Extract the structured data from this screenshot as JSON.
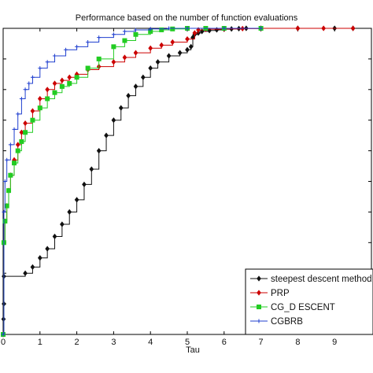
{
  "chart_data": {
    "type": "line",
    "title": "Performance based on the number of function evaluations",
    "xlabel": "Tau",
    "ylabel": "",
    "xlim": [
      0,
      10
    ],
    "ylim": [
      0,
      1
    ],
    "x_ticks": [
      "0",
      "1",
      "2",
      "3",
      "4",
      "5",
      "6",
      "7",
      "8",
      "9"
    ],
    "grid": false,
    "legend_position": "bottom-right",
    "series": [
      {
        "name": "steepest descent method",
        "color": "#111111",
        "marker": "diamond",
        "x": [
          0,
          0.01,
          0.02,
          0.02,
          0.6,
          0.8,
          1.0,
          1.2,
          1.4,
          1.6,
          1.8,
          2.0,
          2.2,
          2.4,
          2.6,
          2.8,
          3.0,
          3.2,
          3.4,
          3.6,
          3.8,
          4.0,
          4.2,
          4.5,
          4.8,
          5.0,
          5.1,
          5.15,
          5.2,
          5.3,
          5.4,
          5.6,
          5.8,
          6.0,
          6.2,
          6.4,
          6.6,
          7.0,
          8.0,
          9.0,
          9.5
        ],
        "y": [
          0,
          0.05,
          0.1,
          0.19,
          0.2,
          0.22,
          0.25,
          0.28,
          0.32,
          0.36,
          0.4,
          0.44,
          0.49,
          0.54,
          0.6,
          0.65,
          0.7,
          0.74,
          0.78,
          0.81,
          0.84,
          0.87,
          0.89,
          0.91,
          0.92,
          0.93,
          0.94,
          0.97,
          0.98,
          0.985,
          0.99,
          0.993,
          0.995,
          0.997,
          0.998,
          0.999,
          1.0,
          1.0,
          1.0,
          1.0,
          1.0
        ]
      },
      {
        "name": "PRP",
        "color": "#cc0000",
        "marker": "diamond",
        "x": [
          0,
          0.02,
          0.05,
          0.1,
          0.15,
          0.2,
          0.3,
          0.4,
          0.5,
          0.6,
          0.8,
          1.0,
          1.2,
          1.4,
          1.6,
          1.8,
          2.0,
          2.3,
          2.6,
          3.0,
          3.3,
          3.6,
          4.0,
          4.3,
          4.6,
          5.0,
          5.2,
          5.3,
          5.5,
          6.0,
          6.5,
          7.0,
          8.0,
          8.7,
          9.5
        ],
        "y": [
          0,
          0.3,
          0.37,
          0.42,
          0.47,
          0.52,
          0.57,
          0.62,
          0.66,
          0.69,
          0.73,
          0.77,
          0.8,
          0.82,
          0.83,
          0.84,
          0.85,
          0.865,
          0.875,
          0.89,
          0.905,
          0.92,
          0.935,
          0.945,
          0.955,
          0.965,
          0.985,
          0.995,
          0.997,
          0.998,
          0.999,
          1.0,
          1.0,
          1.0,
          1.0
        ]
      },
      {
        "name": "CG_D ESCENT",
        "color": "#22cc22",
        "marker": "square",
        "x": [
          0,
          0.02,
          0.05,
          0.1,
          0.15,
          0.2,
          0.3,
          0.4,
          0.5,
          0.6,
          0.8,
          1.0,
          1.2,
          1.4,
          1.6,
          1.8,
          2.0,
          2.3,
          2.6,
          3.0,
          3.3,
          3.6,
          4.0,
          4.3,
          4.6,
          5.0,
          5.5,
          6.0,
          7.0
        ],
        "y": [
          0,
          0.3,
          0.37,
          0.42,
          0.47,
          0.52,
          0.56,
          0.6,
          0.63,
          0.66,
          0.7,
          0.74,
          0.77,
          0.79,
          0.81,
          0.82,
          0.84,
          0.87,
          0.9,
          0.94,
          0.96,
          0.98,
          0.99,
          0.995,
          0.998,
          1.0,
          1.0,
          1.0,
          1.0
        ]
      },
      {
        "name": "CGBRB",
        "color": "#1f3fcf",
        "marker": "cross",
        "x": [
          0,
          0.02,
          0.05,
          0.1,
          0.2,
          0.3,
          0.4,
          0.5,
          0.6,
          0.7,
          0.8,
          1.0,
          1.2,
          1.4,
          1.7,
          2.0,
          2.3,
          2.6,
          3.0,
          3.3,
          3.6,
          4.0,
          4.5,
          5.0,
          6.0,
          7.0
        ],
        "y": [
          0,
          0.4,
          0.5,
          0.57,
          0.62,
          0.67,
          0.72,
          0.77,
          0.8,
          0.82,
          0.84,
          0.87,
          0.89,
          0.91,
          0.93,
          0.94,
          0.955,
          0.97,
          0.98,
          0.99,
          0.995,
          0.998,
          1.0,
          1.0,
          1.0,
          1.0
        ]
      }
    ]
  }
}
